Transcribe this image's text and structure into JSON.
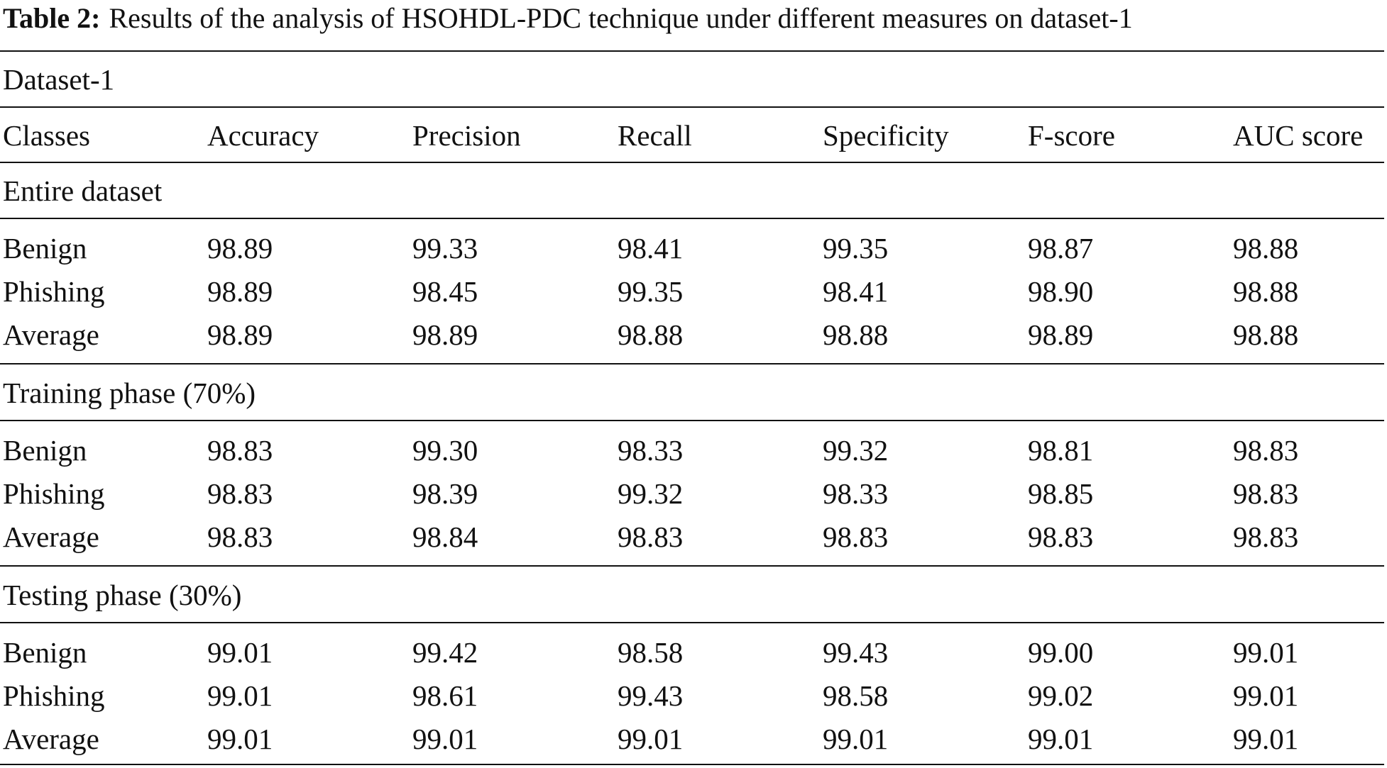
{
  "table": {
    "caption_label": "Table 2:",
    "caption_text": "Results of the analysis of HSOHDL-PDC technique under different measures on dataset-1",
    "dataset_label": "Dataset-1",
    "headers": [
      "Classes",
      "Accuracy",
      "Precision",
      "Recall",
      "Specificity",
      "F-score",
      "AUC score"
    ],
    "sections": [
      {
        "title": "Entire dataset",
        "rows": [
          [
            "Benign",
            "98.89",
            "99.33",
            "98.41",
            "99.35",
            "98.87",
            "98.88"
          ],
          [
            "Phishing",
            "98.89",
            "98.45",
            "99.35",
            "98.41",
            "98.90",
            "98.88"
          ],
          [
            "Average",
            "98.89",
            "98.89",
            "98.88",
            "98.88",
            "98.89",
            "98.88"
          ]
        ]
      },
      {
        "title": "Training phase (70%)",
        "rows": [
          [
            "Benign",
            "98.83",
            "99.30",
            "98.33",
            "99.32",
            "98.81",
            "98.83"
          ],
          [
            "Phishing",
            "98.83",
            "98.39",
            "99.32",
            "98.33",
            "98.85",
            "98.83"
          ],
          [
            "Average",
            "98.83",
            "98.84",
            "98.83",
            "98.83",
            "98.83",
            "98.83"
          ]
        ]
      },
      {
        "title": "Testing phase (30%)",
        "rows": [
          [
            "Benign",
            "99.01",
            "99.42",
            "98.58",
            "99.43",
            "99.00",
            "99.01"
          ],
          [
            "Phishing",
            "99.01",
            "98.61",
            "99.43",
            "98.58",
            "99.02",
            "99.01"
          ],
          [
            "Average",
            "99.01",
            "99.01",
            "99.01",
            "99.01",
            "99.01",
            "99.01"
          ]
        ]
      }
    ]
  }
}
